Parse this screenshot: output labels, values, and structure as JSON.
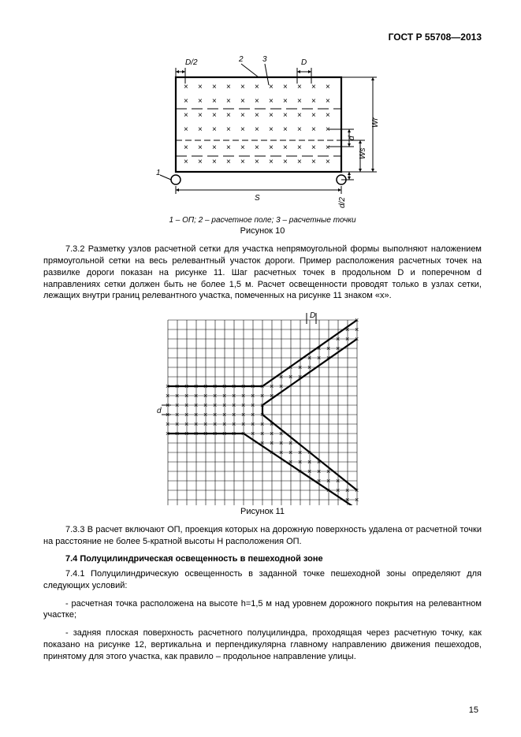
{
  "header": {
    "standard": "ГОСТ Р 55708—2013"
  },
  "figure10": {
    "legend": "1 – ОП; 2 – расчетное поле; 3 – расчетные точки",
    "caption": "Рисунок 10",
    "labels": {
      "D2": "D/2",
      "D": "D",
      "n2": "2",
      "n3": "3",
      "n1": "1",
      "S": "S",
      "Wr": "Wr",
      "Ws": "Ws",
      "d": "d",
      "d2": "d/2"
    },
    "style": {
      "stroke": "#000000",
      "fill_bg": "#ffffff",
      "grid_cols": 12,
      "grid_rows": 6,
      "cell": 20,
      "circle_r": 6,
      "font_size": 10,
      "arrow_size": 4
    }
  },
  "para_7_3_2": "7.3.2 Разметку узлов расчетной сетки для участка непрямоугольной формы выполняют наложением прямоугольной сетки на весь релевантный участок дороги. Пример расположения расчетных точек на развилке дороги показан на рисунке 11. Шаг расчетных точек в продольном D и поперечном d направлениях сетки должен быть не более 1,5 м. Расчет освещенности проводят только в узлах сетки, лежащих внутри границ релевантного участка, помеченных на рисунке 11 знаком «x».",
  "figure11": {
    "caption": "Рисунок 11",
    "labels": {
      "D": "D",
      "d": "d"
    },
    "style": {
      "stroke": "#000000",
      "grid_n": 20,
      "cell": 12,
      "font_size": 10
    }
  },
  "para_7_3_3": "7.3.3 В расчет включают ОП, проекция которых на дорожную поверхность удалена от расчетной точки на расстояние не более 5-кратной высоты H расположения ОП.",
  "section_7_4": "7.4 Полуцилиндрическая освещенность в пешеходной зоне",
  "para_7_4_1_a": "7.4.1 Полуцилиндрическую освещенность в заданной точке пешеходной зоны определяют для следующих условий:",
  "para_7_4_1_b": "- расчетная точка расположена на высоте h=1,5 м над уровнем дорожного покрытия на релевантном участке;",
  "para_7_4_1_c": "- задняя плоская поверхность расчетного полуцилиндра, проходящая через расчетную точку, как показано на рисунке 12, вертикальна и перпендикулярна главному направлению движения пешеходов, принятому для этого участка, как правило – продольное направление улицы.",
  "page_number": "15"
}
